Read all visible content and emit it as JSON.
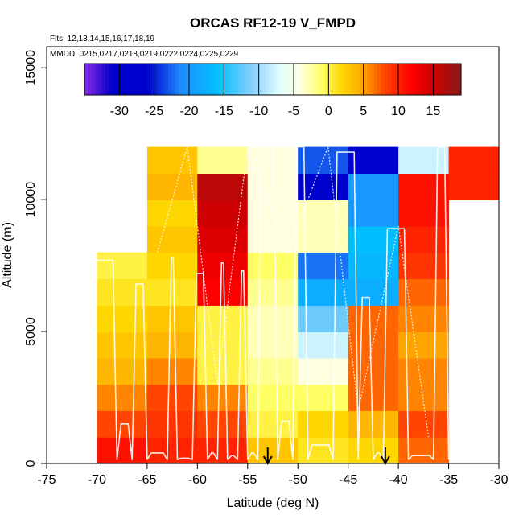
{
  "chart_data": {
    "type": "heatmap",
    "title": "ORCAS RF12-19 V_FMPD",
    "flights_label": "Flts: 12,13,14,15,16,17,18,19",
    "dates_label": "MMDD: 0215,0217,0218,0219,0222,0224,0225,0229",
    "xlabel": "Latitude (deg N)",
    "ylabel": "Altitude (m)",
    "xlim": [
      -75,
      -30
    ],
    "ylim": [
      0,
      15800
    ],
    "x_ticks": [
      "-75",
      "-70",
      "-65",
      "-60",
      "-55",
      "-50",
      "-45",
      "-40",
      "-35",
      "-30"
    ],
    "y_ticks": [
      "0",
      "5000",
      "10000",
      "15000"
    ],
    "colorbar": {
      "range": [
        -35,
        19
      ],
      "tick_values": [
        -30,
        -25,
        -20,
        -15,
        -10,
        -5,
        0,
        5,
        10,
        15
      ],
      "tick_labels": [
        "-30",
        "-25",
        "-20",
        "-15",
        "-10",
        "-5",
        "0",
        "5",
        "10",
        "15"
      ],
      "color_stops": [
        {
          "v": -35,
          "c": "#8a2be2"
        },
        {
          "v": -31,
          "c": "#0000cd"
        },
        {
          "v": -26,
          "c": "#0000cd"
        },
        {
          "v": -21,
          "c": "#1e90ff"
        },
        {
          "v": -16,
          "c": "#00bfff"
        },
        {
          "v": -11,
          "c": "#87cefa"
        },
        {
          "v": -7,
          "c": "#e0ffff"
        },
        {
          "v": -4,
          "c": "#ffffe0"
        },
        {
          "v": -1,
          "c": "#ffff66"
        },
        {
          "v": 2,
          "c": "#ffd700"
        },
        {
          "v": 5,
          "c": "#ffa500"
        },
        {
          "v": 8,
          "c": "#ff4500"
        },
        {
          "v": 12,
          "c": "#ff0000"
        },
        {
          "v": 15,
          "c": "#cc0000"
        },
        {
          "v": 19,
          "c": "#8b1a1a"
        }
      ]
    },
    "cell_width_deg": 5,
    "cell_height_m": 1000,
    "columns": [
      {
        "lat_start": -70,
        "bottom": 0,
        "values": [
          11,
          8,
          6,
          4,
          3,
          2,
          1,
          0
        ]
      },
      {
        "lat_start": -65,
        "bottom": 0,
        "values": [
          10,
          9,
          8,
          6,
          4,
          3,
          1,
          2,
          3,
          2,
          4,
          3
        ]
      },
      {
        "lat_start": -60,
        "bottom": 0,
        "values": [
          10,
          8,
          6,
          0,
          0,
          0,
          12,
          13,
          14,
          15,
          16,
          -2
        ]
      },
      {
        "lat_start": -55,
        "bottom": 0,
        "values": [
          3,
          0,
          -1,
          -2,
          -3,
          -3,
          -2,
          -1,
          -4,
          -4,
          -4,
          -4
        ]
      },
      {
        "lat_start": -50,
        "bottom": 0,
        "values": [
          1,
          2,
          -1,
          -4,
          -8,
          -12,
          -18,
          -22,
          -3,
          -3,
          -27,
          -23
        ]
      },
      {
        "lat_start": -45,
        "bottom": 0,
        "values": [
          2,
          4,
          7,
          7,
          7,
          7,
          -18,
          -17,
          -16,
          -20,
          -20,
          -26
        ]
      },
      {
        "lat_start": -40,
        "bottom": 0,
        "values": [
          7,
          8,
          6,
          6,
          5,
          6,
          7,
          9,
          10,
          11,
          11,
          -8
        ]
      },
      {
        "lat_start": -35,
        "bottom": 10000,
        "values": [
          10,
          10
        ]
      }
    ],
    "annotation_arrows_lat": [
      -53,
      -41.3
    ]
  }
}
